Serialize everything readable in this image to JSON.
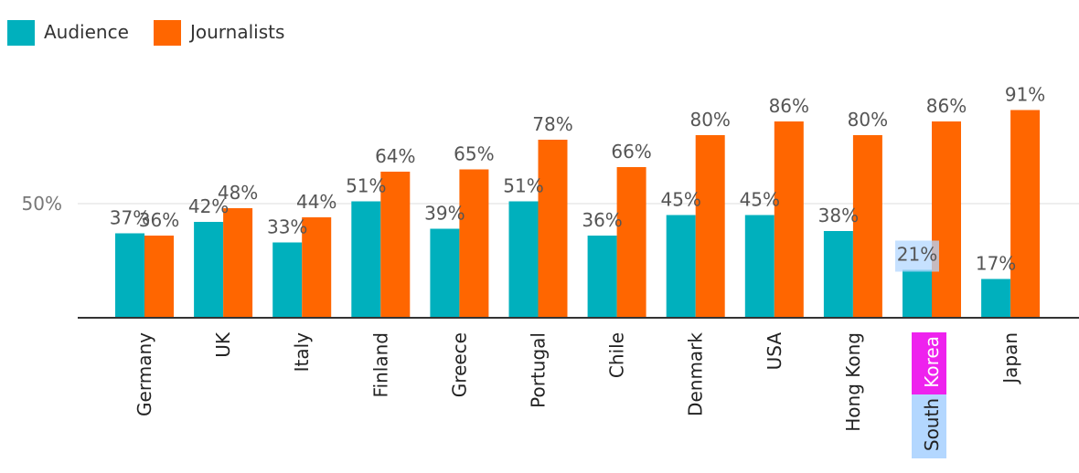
{
  "chart_data": {
    "type": "bar",
    "categories": [
      "Germany",
      "UK",
      "Italy",
      "Finland",
      "Greece",
      "Portugal",
      "Chile",
      "Denmark",
      "USA",
      "Hong Kong",
      "South Korea",
      "Japan"
    ],
    "series": [
      {
        "name": "Audience",
        "values": [
          37,
          42,
          33,
          51,
          39,
          51,
          36,
          45,
          45,
          38,
          21,
          17
        ],
        "labels": [
          "37%",
          "42%",
          "33%",
          "51%",
          "39%",
          "51%",
          "36%",
          "45%",
          "45%",
          "38%",
          "21%",
          "17%"
        ],
        "color": "#00b0bd"
      },
      {
        "name": "Journalists",
        "values": [
          36,
          48,
          44,
          64,
          65,
          78,
          66,
          80,
          86,
          80,
          86,
          91
        ],
        "labels": [
          "36%",
          "48%",
          "44%",
          "64%",
          "65%",
          "78%",
          "66%",
          "80%",
          "86%",
          "80%",
          "86%",
          "91%"
        ],
        "color": "#ff6600"
      }
    ],
    "ylim": [
      0,
      100
    ],
    "yticks": [
      {
        "value": 50,
        "label": "50%"
      }
    ],
    "grid": true,
    "legend": "top-left",
    "highlight": {
      "category": "South Korea",
      "colors": {
        "selection": "#b3d7ff",
        "magenta": "#ee22ee"
      }
    }
  }
}
